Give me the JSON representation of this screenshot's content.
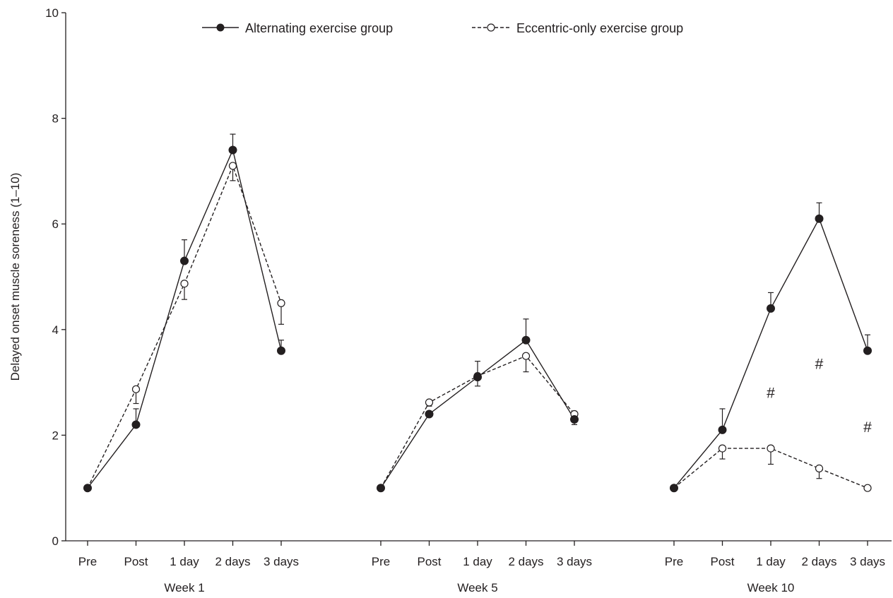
{
  "chart_data": {
    "type": "line",
    "ylabel": "Delayed onset muscle soreness (1–10)",
    "ylim": [
      0,
      10
    ],
    "yticks": [
      0,
      2,
      4,
      6,
      8,
      10
    ],
    "grid": false,
    "legend_position": "top",
    "time_points": [
      "Pre",
      "Post",
      "1 day",
      "2 days",
      "3 days"
    ],
    "groups": [
      "Week 1",
      "Week 5",
      "Week 10"
    ],
    "series": [
      {
        "name": "Alternating exercise group",
        "marker": "filled-circle",
        "line_style": "solid",
        "color": "#231f20",
        "values": [
          [
            1.0,
            2.2,
            5.3,
            7.4,
            3.6
          ],
          [
            1.0,
            2.4,
            3.1,
            3.8,
            2.3
          ],
          [
            1.0,
            2.1,
            4.4,
            6.1,
            3.6
          ]
        ],
        "error_upper": [
          [
            1.0,
            2.5,
            5.7,
            7.7,
            3.8
          ],
          [
            1.0,
            2.45,
            3.4,
            4.2,
            2.45
          ],
          [
            1.0,
            2.5,
            4.7,
            6.4,
            3.9
          ]
        ]
      },
      {
        "name": "Eccentric-only exercise group",
        "marker": "open-circle",
        "line_style": "dashed",
        "color": "#231f20",
        "values": [
          [
            1.0,
            2.87,
            4.87,
            7.1,
            4.5
          ],
          [
            1.0,
            2.62,
            3.12,
            3.5,
            2.4
          ],
          [
            1.0,
            1.75,
            1.75,
            1.37,
            1.0
          ]
        ],
        "error_lower": [
          [
            1.0,
            2.6,
            4.57,
            6.82,
            4.1
          ],
          [
            1.0,
            2.55,
            2.93,
            3.2,
            2.2
          ],
          [
            1.0,
            1.55,
            1.45,
            1.18,
            1.0
          ]
        ]
      }
    ],
    "annotations": [
      {
        "text": "#",
        "group": 2,
        "point": 2,
        "y": 2.8
      },
      {
        "text": "#",
        "group": 2,
        "point": 3,
        "y": 3.35
      },
      {
        "text": "#",
        "group": 2,
        "point": 4,
        "y": 2.15
      }
    ]
  }
}
